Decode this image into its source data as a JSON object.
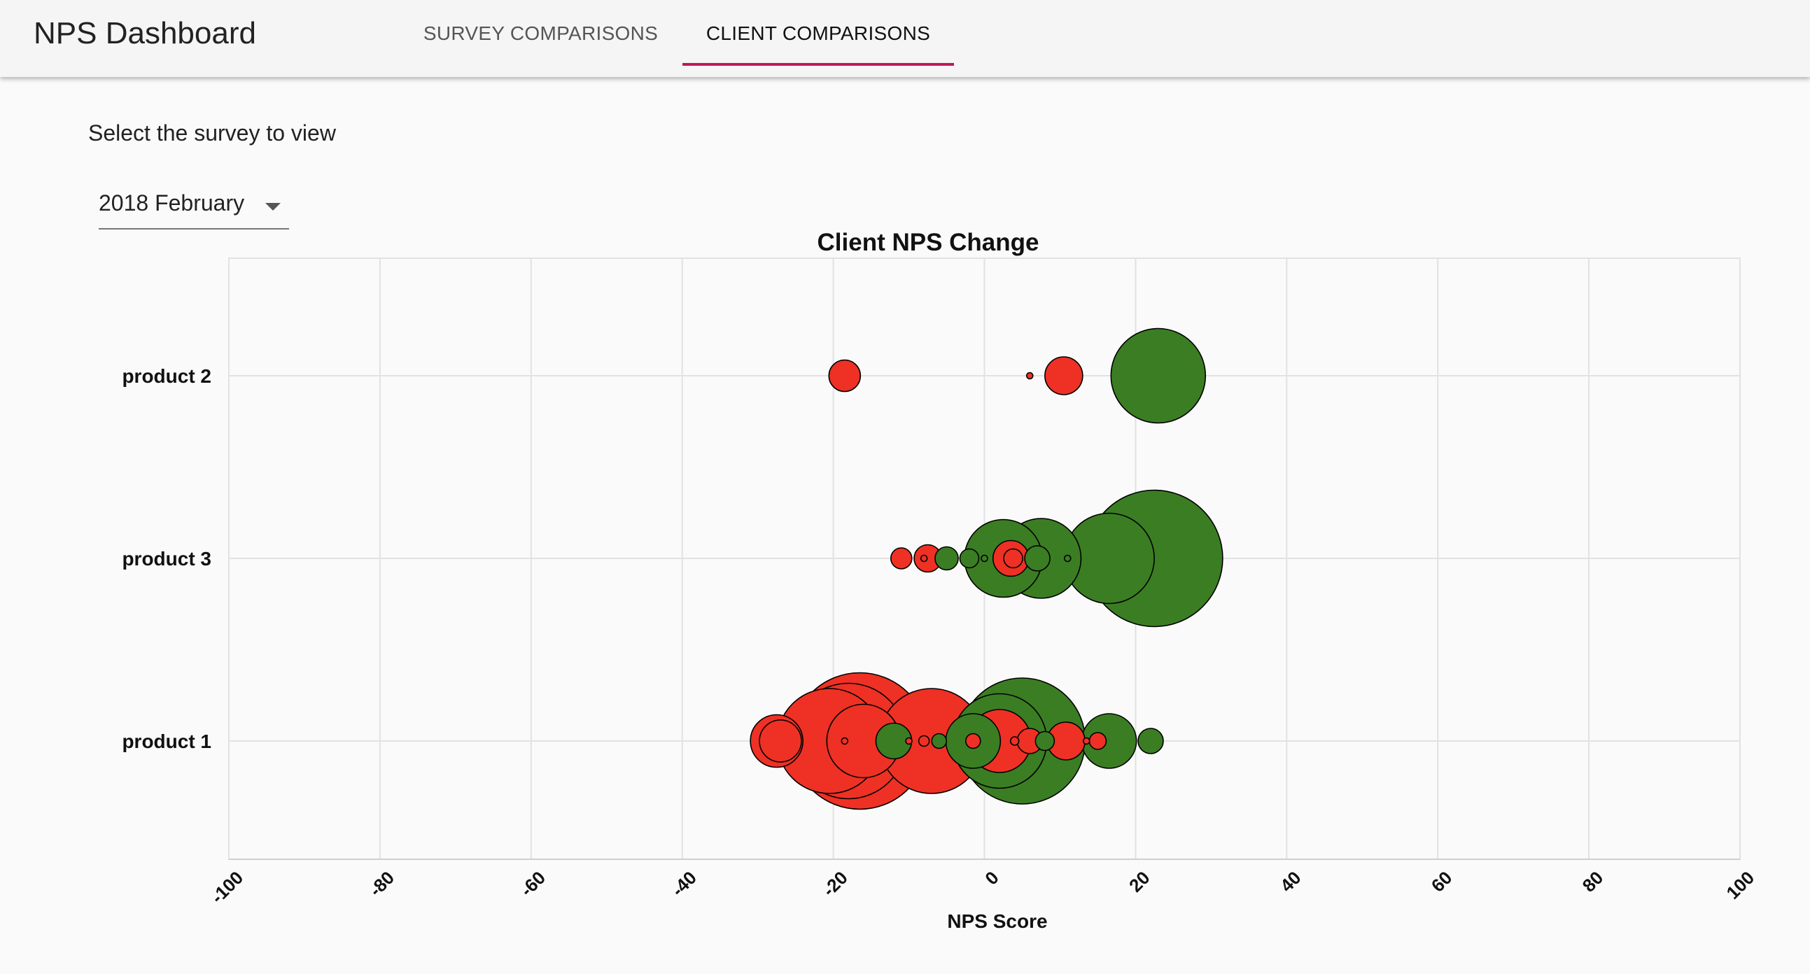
{
  "header": {
    "app_title": "NPS Dashboard",
    "tabs": [
      {
        "label": "SURVEY COMPARISONS",
        "active": false
      },
      {
        "label": "CLIENT COMPARISONS",
        "active": true
      }
    ],
    "accent_color": "#c2185b"
  },
  "controls": {
    "prompt": "Select the survey to view",
    "survey_select": {
      "value": "2018 February",
      "icon": "dropdown-arrow-icon"
    }
  },
  "chart_data": {
    "type": "scatter",
    "title": "Client NPS Change",
    "xlabel": "NPS Score",
    "ylabel": "",
    "xlim": [
      -100,
      100
    ],
    "xticks": [
      -100,
      -80,
      -60,
      -40,
      -20,
      0,
      20,
      40,
      60,
      80,
      100
    ],
    "categories": [
      "product 2",
      "product 3",
      "product 1"
    ],
    "grid": true,
    "colors": {
      "positive": "#3b7d23",
      "negative": "#ee3124",
      "outline": "#000000"
    },
    "series": [
      {
        "category": "product 2",
        "points": [
          {
            "x": -18.5,
            "size": 1.5,
            "change": "negative"
          },
          {
            "x": 6,
            "size": 0.3,
            "change": "negative"
          },
          {
            "x": 10.5,
            "size": 1.8,
            "change": "negative"
          },
          {
            "x": 23,
            "size": 4.5,
            "change": "positive"
          }
        ]
      },
      {
        "category": "product 3",
        "points": [
          {
            "x": 22.5,
            "size": 6.5,
            "change": "positive"
          },
          {
            "x": 16.5,
            "size": 4.3,
            "change": "positive"
          },
          {
            "x": 7.5,
            "size": 3.8,
            "change": "positive"
          },
          {
            "x": 2.5,
            "size": 3.7,
            "change": "positive"
          },
          {
            "x": 11,
            "size": 0.3,
            "change": "positive"
          },
          {
            "x": 3.5,
            "size": 1.7,
            "change": "negative"
          },
          {
            "x": 7,
            "size": 1.2,
            "change": "positive"
          },
          {
            "x": 3.8,
            "size": 0.9,
            "change": "negative"
          },
          {
            "x": -11,
            "size": 1.0,
            "change": "negative"
          },
          {
            "x": -7.5,
            "size": 1.3,
            "change": "negative"
          },
          {
            "x": -8,
            "size": 0.3,
            "change": "negative"
          },
          {
            "x": -5,
            "size": 1.1,
            "change": "positive"
          },
          {
            "x": -2,
            "size": 0.9,
            "change": "positive"
          },
          {
            "x": 0,
            "size": 0.3,
            "change": "positive"
          }
        ]
      },
      {
        "category": "product 1",
        "points": [
          {
            "x": 5,
            "size": 6.0,
            "change": "positive"
          },
          {
            "x": 2,
            "size": 4.5,
            "change": "positive"
          },
          {
            "x": -16.5,
            "size": 6.5,
            "change": "negative"
          },
          {
            "x": -18,
            "size": 5.5,
            "change": "negative"
          },
          {
            "x": -20.5,
            "size": 5.0,
            "change": "negative"
          },
          {
            "x": -7,
            "size": 5.0,
            "change": "negative"
          },
          {
            "x": 2,
            "size": 3.0,
            "change": "negative"
          },
          {
            "x": -16,
            "size": 3.5,
            "change": "negative"
          },
          {
            "x": -27.5,
            "size": 2.5,
            "change": "negative"
          },
          {
            "x": -27,
            "size": 2.0,
            "change": "negative"
          },
          {
            "x": -1.5,
            "size": 2.6,
            "change": "positive"
          },
          {
            "x": 16.5,
            "size": 2.6,
            "change": "positive"
          },
          {
            "x": -12,
            "size": 1.7,
            "change": "positive"
          },
          {
            "x": 10.8,
            "size": 1.8,
            "change": "negative"
          },
          {
            "x": 6,
            "size": 1.2,
            "change": "negative"
          },
          {
            "x": 22,
            "size": 1.2,
            "change": "positive"
          },
          {
            "x": 8,
            "size": 0.9,
            "change": "positive"
          },
          {
            "x": 15,
            "size": 0.8,
            "change": "negative"
          },
          {
            "x": -6,
            "size": 0.7,
            "change": "positive"
          },
          {
            "x": -8,
            "size": 0.5,
            "change": "negative"
          },
          {
            "x": -1.5,
            "size": 0.7,
            "change": "negative"
          },
          {
            "x": -10,
            "size": 0.3,
            "change": "negative"
          },
          {
            "x": -18.5,
            "size": 0.3,
            "change": "negative"
          },
          {
            "x": 4,
            "size": 0.4,
            "change": "negative"
          },
          {
            "x": 13.5,
            "size": 0.3,
            "change": "negative"
          }
        ]
      }
    ]
  }
}
